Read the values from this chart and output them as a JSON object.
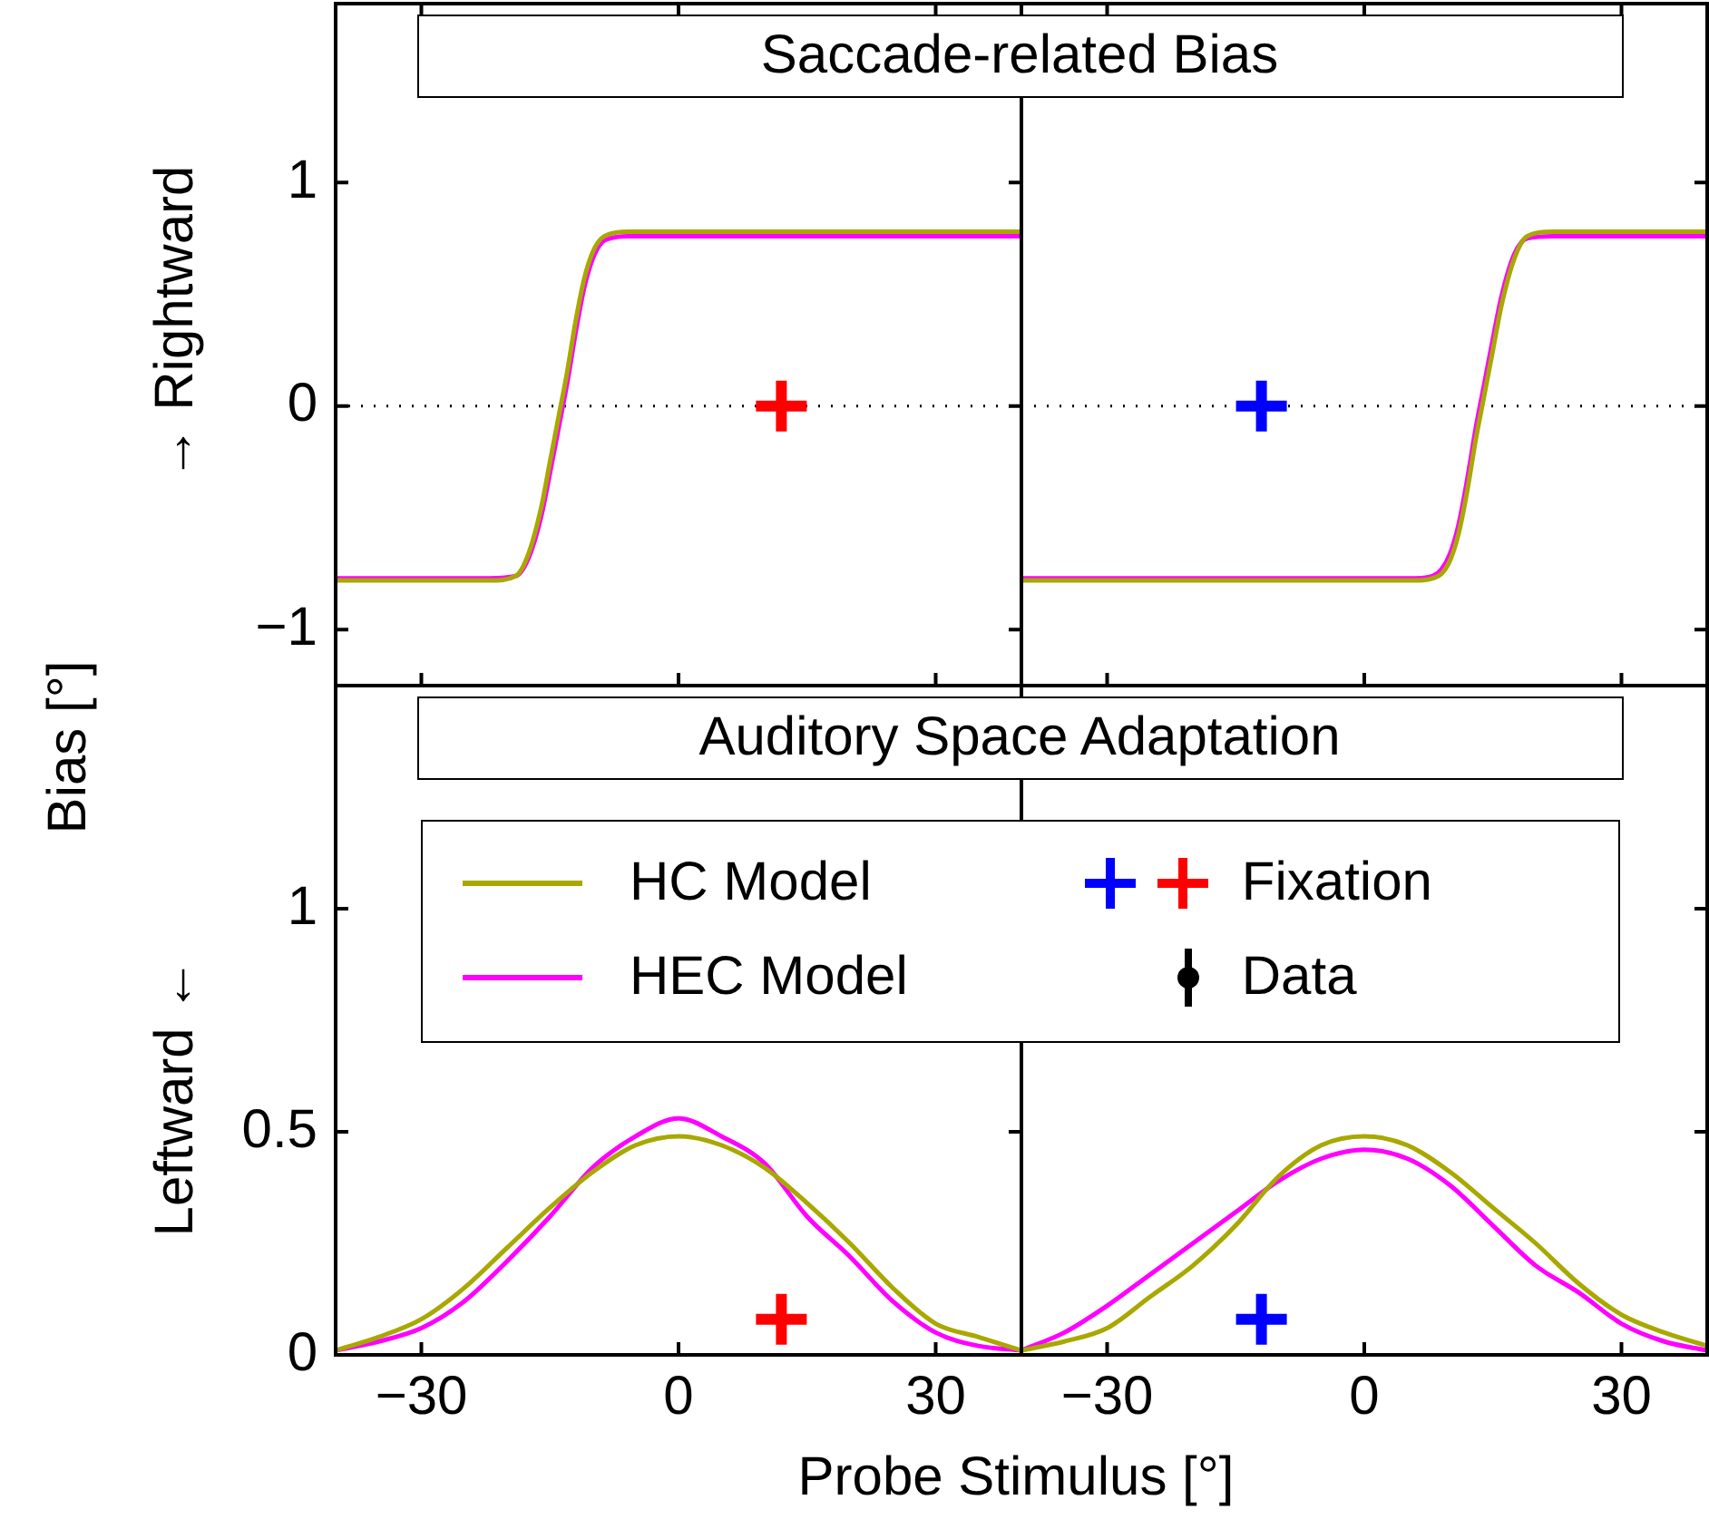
{
  "chart_data": [
    {
      "type": "line",
      "title": "Saccade-related Bias",
      "ylabel": "→ Rightward",
      "annotations": [
        "Bias [°]"
      ],
      "xlim": [
        -40,
        40
      ],
      "xticks": [
        -30,
        0,
        30
      ],
      "ylim": [
        -1.25,
        1.8
      ],
      "yticks": [
        {
          "value": -1,
          "label": "−1"
        },
        0,
        1
      ],
      "tick_labels": "y",
      "grid": false,
      "ref_lines": [
        {
          "axis": "y",
          "value": 0,
          "line_style": "dotted",
          "color": "#000000"
        }
      ],
      "series": [
        {
          "color": "#a8a800",
          "x": [
            -40,
            -22,
            -19,
            -17.5,
            -16,
            -15,
            -14,
            -13,
            -12,
            -11,
            -10,
            -9,
            -8,
            -6,
            40
          ],
          "values": [
            -0.78,
            -0.78,
            -0.76,
            -0.66,
            -0.45,
            -0.25,
            -0.05,
            0.15,
            0.38,
            0.57,
            0.69,
            0.75,
            0.77,
            0.78,
            0.78
          ]
        },
        {
          "color": "#ff00ff",
          "x": [
            -40,
            -22,
            -19,
            -17.5,
            -16,
            -15,
            -14,
            -13,
            -12,
            -11,
            -10,
            -9,
            -8,
            -6,
            40
          ],
          "values": [
            -0.77,
            -0.77,
            -0.76,
            -0.68,
            -0.49,
            -0.3,
            -0.1,
            0.1,
            0.33,
            0.53,
            0.66,
            0.73,
            0.75,
            0.76,
            0.76
          ]
        },
        {
          "type": "scatter",
          "marker": "cross",
          "color": "#ff0000",
          "x": [
            12
          ],
          "values": [
            0
          ]
        }
      ]
    },
    {
      "type": "line",
      "xlim": [
        -40,
        40
      ],
      "xticks": [
        -30,
        0,
        30
      ],
      "ylim": [
        -1.25,
        1.8
      ],
      "yticks": [
        -1,
        0,
        1
      ],
      "tick_labels": false,
      "grid": false,
      "ref_lines": [
        {
          "axis": "y",
          "value": 0,
          "line_style": "dotted",
          "color": "#000000"
        }
      ],
      "series": [
        {
          "color": "#a8a800",
          "x": [
            -40,
            6,
            8,
            9,
            10,
            11,
            12,
            13,
            14,
            15,
            16,
            17.5,
            19,
            22,
            40
          ],
          "values": [
            -0.78,
            -0.78,
            -0.77,
            -0.75,
            -0.69,
            -0.57,
            -0.38,
            -0.15,
            0.05,
            0.25,
            0.45,
            0.66,
            0.76,
            0.78,
            0.78
          ]
        },
        {
          "color": "#ff00ff",
          "x": [
            -40,
            6,
            8,
            9,
            10,
            11,
            12,
            13,
            14,
            15,
            16,
            17.5,
            19,
            22,
            40
          ],
          "values": [
            -0.77,
            -0.77,
            -0.76,
            -0.73,
            -0.66,
            -0.53,
            -0.33,
            -0.1,
            0.1,
            0.3,
            0.49,
            0.68,
            0.75,
            0.76,
            0.76
          ]
        },
        {
          "type": "scatter",
          "marker": "cross",
          "color": "#0000ff",
          "x": [
            -12
          ],
          "values": [
            0
          ]
        }
      ]
    },
    {
      "type": "line",
      "title": "Auditory Space Adaptation",
      "ylabel": "Leftward ←",
      "xlabel": "Probe Stimulus [°]",
      "xlim": [
        -40,
        40
      ],
      "xticks": [
        {
          "value": -30,
          "label": "−30"
        },
        0,
        30
      ],
      "ylim": [
        0,
        1.5
      ],
      "yticks": [
        0,
        0.5,
        1
      ],
      "grid": false,
      "legend": "top",
      "series": [
        {
          "name": "HC Model",
          "color": "#a8a800",
          "x": [
            -40,
            -35,
            -30,
            -25,
            -20,
            -15,
            -10,
            -5,
            0,
            5,
            10,
            15,
            20,
            25,
            30,
            35,
            40
          ],
          "values": [
            0.01,
            0.04,
            0.08,
            0.15,
            0.24,
            0.33,
            0.41,
            0.47,
            0.49,
            0.47,
            0.42,
            0.34,
            0.25,
            0.15,
            0.07,
            0.04,
            0.01
          ]
        },
        {
          "name": "HEC Model",
          "color": "#ff00ff",
          "x": [
            -40,
            -35,
            -30,
            -25,
            -20,
            -15,
            -10,
            -5,
            0,
            5,
            10,
            15,
            20,
            25,
            30,
            35,
            40
          ],
          "values": [
            0.01,
            0.03,
            0.06,
            0.12,
            0.21,
            0.31,
            0.42,
            0.49,
            0.53,
            0.49,
            0.43,
            0.31,
            0.22,
            0.12,
            0.05,
            0.02,
            0.01
          ]
        },
        {
          "name": "Fixation",
          "type": "scatter",
          "marker": "cross",
          "color": "#ff0000",
          "x": [
            12
          ],
          "values": [
            0.08
          ]
        },
        {
          "name": "Data",
          "type": "scatter",
          "marker": "circle",
          "color": "#000000"
        }
      ]
    },
    {
      "type": "line",
      "xlim": [
        -40,
        40
      ],
      "xticks": [
        {
          "value": -30,
          "label": "−30"
        },
        0,
        30
      ],
      "ylim": [
        0,
        1.5
      ],
      "yticks": [
        0,
        0.5,
        1
      ],
      "tick_labels": "x",
      "grid": false,
      "series": [
        {
          "color": "#a8a800",
          "x": [
            -40,
            -35,
            -30,
            -25,
            -20,
            -15,
            -10,
            -5,
            0,
            5,
            10,
            15,
            20,
            25,
            30,
            35,
            40
          ],
          "values": [
            0.01,
            0.03,
            0.06,
            0.13,
            0.2,
            0.29,
            0.4,
            0.47,
            0.49,
            0.47,
            0.41,
            0.33,
            0.25,
            0.16,
            0.09,
            0.05,
            0.02
          ]
        },
        {
          "color": "#ff00ff",
          "x": [
            -40,
            -35,
            -30,
            -25,
            -20,
            -15,
            -10,
            -5,
            0,
            5,
            10,
            15,
            20,
            25,
            30,
            35,
            40
          ],
          "values": [
            0.01,
            0.05,
            0.11,
            0.18,
            0.25,
            0.32,
            0.39,
            0.44,
            0.46,
            0.44,
            0.38,
            0.29,
            0.2,
            0.14,
            0.07,
            0.03,
            0.01
          ]
        },
        {
          "type": "scatter",
          "marker": "cross",
          "color": "#0000ff",
          "x": [
            -12
          ],
          "values": [
            0.08
          ]
        }
      ]
    }
  ]
}
